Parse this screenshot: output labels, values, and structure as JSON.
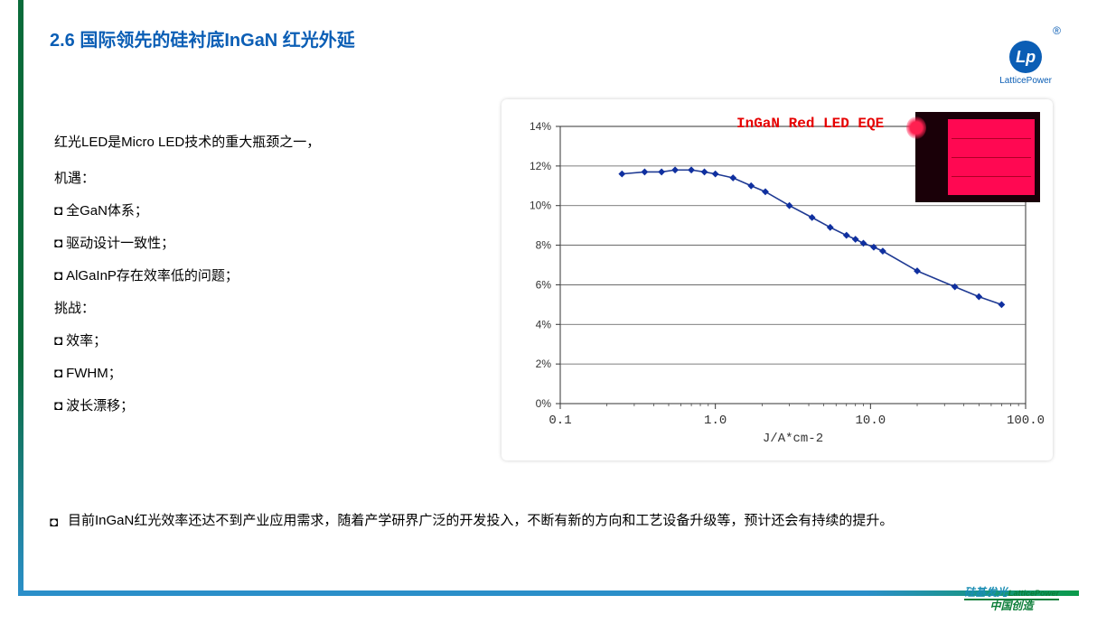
{
  "heading": "2.6  国际领先的硅衬底InGaN 红光外延",
  "logo": {
    "mark": "Lp",
    "text": "LatticePower",
    "reg": "®"
  },
  "left_text": {
    "intro": "红光LED是Micro LED技术的重大瓶颈之一，",
    "opportunity_label": "机遇：",
    "opportunity_items": [
      "全GaN体系；",
      "驱动设计一致性；",
      "AlGaInP存在效率低的问题；"
    ],
    "challenge_label": "挑战：",
    "challenge_items": [
      "效率；",
      "FWHM；",
      "波长漂移；"
    ]
  },
  "bottom_note": "目前InGaN红光效率还达不到产业应用需求，随着产学研界广泛的开发投入，不断有新的方向和工艺设备升级等，预计还会有持续的提升。",
  "chart": {
    "type": "line-scatter",
    "title": "InGaN Red LED EQE",
    "x_label": "J/A*cm-2",
    "x_scale": "log",
    "x_ticks": [
      0.1,
      1.0,
      10.0,
      100.0
    ],
    "x_tick_labels": [
      "0.1",
      "1.0",
      "10.0",
      "100.0"
    ],
    "y_ticks": [
      0,
      2,
      4,
      6,
      8,
      10,
      12,
      14
    ],
    "y_tick_labels": [
      "0%",
      "2%",
      "4%",
      "6%",
      "8%",
      "10%",
      "12%",
      "14%"
    ],
    "ylim": [
      0,
      14
    ],
    "series": {
      "x": [
        0.25,
        0.35,
        0.45,
        0.55,
        0.7,
        0.85,
        1.0,
        1.3,
        1.7,
        2.1,
        3.0,
        4.2,
        5.5,
        7.0,
        8.0,
        9.0,
        10.5,
        12.0,
        20.0,
        35.0,
        50.0,
        70.0
      ],
      "y": [
        11.6,
        11.7,
        11.7,
        11.8,
        11.8,
        11.7,
        11.6,
        11.4,
        11.0,
        10.7,
        10.0,
        9.4,
        8.9,
        8.5,
        8.3,
        8.1,
        7.9,
        7.7,
        6.7,
        5.9,
        5.4,
        5.0
      ],
      "line_color": "#1f3a93",
      "marker_color": "#1030a0",
      "line_width": 1.6,
      "marker_size": 3.2
    },
    "axis_color": "#333333",
    "grid_color": "#555555",
    "grid_width": 0.8,
    "tick_font": "12px Courier New",
    "tick_color": "#333333",
    "label_font": "14px Courier New",
    "background": "#ffffff"
  },
  "footer": {
    "line1_cn": "硅基发光",
    "line1_en": "LatticePower",
    "line2": "中国创造"
  }
}
